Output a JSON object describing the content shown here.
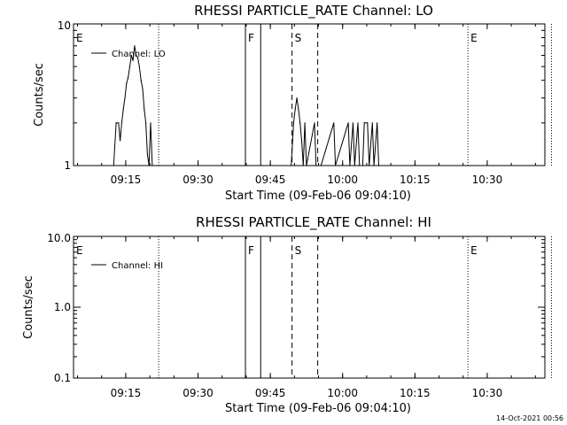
{
  "chart_data": [
    {
      "type": "line",
      "title": "RHESSI PARTICLE_RATE Channel: LO",
      "xlabel": "Start Time (09-Feb-06 09:04:10)",
      "ylabel": "Counts/sec",
      "y_scale": "log",
      "ylim": [
        1,
        10
      ],
      "y_ticks": [
        {
          "value": 1,
          "label": "1"
        },
        {
          "value": 10,
          "label": "10"
        }
      ],
      "x_ticks": [
        "09:15",
        "09:30",
        "09:45",
        "10:00",
        "10:15",
        "10:30"
      ],
      "legend": {
        "position": "top-left",
        "entries": [
          "Channel: LO"
        ]
      },
      "series": [
        {
          "name": "Channel: LO",
          "x": [
            "09:12:30",
            "09:13:00",
            "09:13:30",
            "09:13:50",
            "09:14:10",
            "09:14:30",
            "09:14:50",
            "09:15:10",
            "09:15:30",
            "09:15:50",
            "09:16:10",
            "09:16:30",
            "09:16:50",
            "09:17:10",
            "09:17:30",
            "09:17:50",
            "09:18:10",
            "09:18:30",
            "09:18:50",
            "09:19:10",
            "09:19:30",
            "09:19:50",
            "09:20:10",
            "09:20:30",
            "09:49:20",
            "09:49:50",
            "09:50:10",
            "09:50:30",
            "09:50:50",
            "09:51:10",
            "09:51:30",
            "09:51:50",
            "09:52:10",
            "09:52:30",
            "09:54:10",
            "09:54:30",
            "09:55:30",
            "09:58:10",
            "09:58:30",
            "10:01:10",
            "10:01:30",
            "10:02:10",
            "10:02:30",
            "10:03:10",
            "10:03:30",
            "10:04:10",
            "10:04:30",
            "10:05:10",
            "10:05:30",
            "10:06:10",
            "10:06:30",
            "10:07:10",
            "10:07:30"
          ],
          "y": [
            1,
            2,
            2,
            1.5,
            2,
            2.5,
            3,
            3.8,
            4.2,
            5,
            6,
            5.5,
            7,
            6,
            5.8,
            5,
            4,
            3.5,
            2.5,
            2,
            1.2,
            1,
            2,
            1,
            1,
            2,
            2.5,
            3,
            2.5,
            2,
            1.5,
            1,
            2,
            1,
            2,
            1,
            1,
            2,
            1,
            2,
            1,
            2,
            1,
            2,
            1,
            1,
            2,
            2,
            1,
            2,
            1,
            2,
            1
          ]
        }
      ],
      "annotations": [
        {
          "label": "E",
          "x": "09:04:10"
        },
        {
          "label": "F",
          "x": "09:39:50"
        },
        {
          "label": "S",
          "x": "09:49:30"
        },
        {
          "label": "E",
          "x": "10:26:00"
        }
      ]
    },
    {
      "type": "line",
      "title": "RHESSI PARTICLE_RATE Channel: HI",
      "xlabel": "Start Time (09-Feb-06 09:04:10)",
      "ylabel": "Counts/sec",
      "y_scale": "log",
      "ylim": [
        0.1,
        10
      ],
      "y_ticks": [
        {
          "value": 0.1,
          "label": "0.1"
        },
        {
          "value": 1,
          "label": "1.0"
        },
        {
          "value": 10,
          "label": "10.0"
        }
      ],
      "x_ticks": [
        "09:15",
        "09:30",
        "09:45",
        "10:00",
        "10:15",
        "10:30"
      ],
      "legend": {
        "position": "top-left",
        "entries": [
          "Channel: HI"
        ]
      },
      "series": [
        {
          "name": "Channel: HI",
          "x": [],
          "y": []
        }
      ],
      "annotations": [
        {
          "label": "E",
          "x": "09:04:10"
        },
        {
          "label": "F",
          "x": "09:39:50"
        },
        {
          "label": "S",
          "x": "09:49:30"
        },
        {
          "label": "E",
          "x": "10:26:00"
        }
      ]
    }
  ],
  "event_lines": {
    "dotted": [
      "09:21:50",
      "10:26:00",
      "10:43:20"
    ],
    "solid": [
      "09:39:50",
      "09:43:00"
    ],
    "dashed": [
      "09:49:30",
      "09:54:50"
    ]
  },
  "footer": {
    "timestamp": "14-Oct-2021 00:56"
  }
}
